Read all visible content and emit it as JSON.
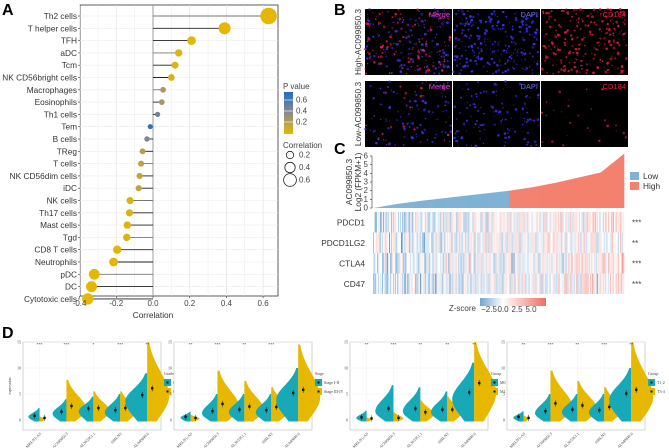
{
  "panel_labels": [
    "A",
    "B",
    "C",
    "D"
  ],
  "chart_data": [
    {
      "type": "lollipop",
      "panel": "A",
      "xlabel": "Correlation",
      "xlim": [
        -0.4,
        0.65
      ],
      "xticks": [
        "-0.4",
        "-0.2",
        "0.0",
        "0.2",
        "0.4",
        "0.6"
      ],
      "categories": [
        "Th2 cells",
        "T helper cells",
        "TFH",
        "aDC",
        "Tcm",
        "NK CD56bright cells",
        "Macrophages",
        "Eosinophils",
        "Th1 cells",
        "Tem",
        "B cells",
        "TReg",
        "T cells",
        "NK CD56dim cells",
        "iDC",
        "NK cells",
        "Th17 cells",
        "Mast cells",
        "Tgd",
        "CD8 T cells",
        "Neutrophils",
        "pDC",
        "DC",
        "Cytotoxic cells"
      ],
      "correlation": [
        0.63,
        0.39,
        0.21,
        0.14,
        0.12,
        0.1,
        0.055,
        0.048,
        0.025,
        -0.015,
        -0.033,
        -0.057,
        -0.065,
        -0.073,
        -0.078,
        -0.125,
        -0.128,
        -0.14,
        -0.143,
        -0.195,
        -0.215,
        -0.32,
        -0.335,
        -0.355
      ],
      "p_value": [
        0.01,
        0.01,
        0.02,
        0.05,
        0.05,
        0.08,
        0.35,
        0.38,
        0.65,
        0.92,
        0.55,
        0.28,
        0.25,
        0.22,
        0.22,
        0.06,
        0.06,
        0.05,
        0.05,
        0.02,
        0.02,
        0.01,
        0.01,
        0.01
      ],
      "legend_pvalue": {
        "title": "P value",
        "ticks": [
          "0.6",
          "0.4",
          "0.2"
        ],
        "colors": {
          "high": "#1f6fc2",
          "mid": "#8d8a8f",
          "low": "#e7b800"
        }
      },
      "legend_correlation": {
        "title": "Correlation",
        "ticks": [
          "0.2",
          "0.4",
          "0.6"
        ]
      }
    },
    {
      "type": "image-grid",
      "panel": "B",
      "rows": [
        "High-AC099850.3",
        "Low-AC099850.3"
      ],
      "channels": [
        {
          "label": "Merge",
          "color": "#e040e0"
        },
        {
          "label": "DAPI",
          "color": "#6a6aff"
        },
        {
          "label": "CD184",
          "color": "#e8203f"
        }
      ]
    },
    {
      "type": "bar+heatmap",
      "panel": "C",
      "ylabel_line1": "AC099850.3",
      "ylabel_line2": "Log2 (FPKM+1)",
      "ylim": [
        0,
        6
      ],
      "yticks": [
        "0",
        "1",
        "2",
        "3",
        "4",
        "5",
        "6"
      ],
      "expression_quantiles": [
        0,
        0.45,
        0.8,
        1.1,
        1.4,
        1.7,
        2.0,
        2.4,
        2.9,
        3.5,
        4.1,
        6.2
      ],
      "split_value": 2.0,
      "groups": [
        {
          "name": "Low",
          "color": "#7fb2d5"
        },
        {
          "name": "High",
          "color": "#f4806f"
        }
      ],
      "heatmap_rows": [
        {
          "gene": "PDCD1",
          "sig": "***",
          "trend": 0.5
        },
        {
          "gene": "PDCD1LG2",
          "sig": "**",
          "trend": 0.3
        },
        {
          "gene": "CTLA4",
          "sig": "***",
          "trend": 0.4
        },
        {
          "gene": "CD47",
          "sig": "***",
          "trend": 0.5
        }
      ],
      "zscore_legend": {
        "title": "Z-score",
        "ticks": [
          "−2.5",
          "0.0",
          "2.5",
          "5.0"
        ]
      }
    },
    {
      "type": "split-violin",
      "panel": "D",
      "ylabel": "expression",
      "yticks": [
        "0",
        "5",
        "10",
        "15"
      ],
      "ylim": [
        0,
        15
      ],
      "genes": [
        "MKLN1-AS",
        "AC099850.3",
        "AL365361.1",
        "SIRLNT",
        "AL049840.6"
      ],
      "group_colors": [
        "#17a9b7",
        "#e7b800"
      ],
      "panels": [
        {
          "legend_title": "Grade",
          "groups": [
            "G1-2",
            "G3-4"
          ],
          "stars": [
            "***",
            "***",
            "*",
            "***",
            "**"
          ],
          "means": [
            [
              0.8,
              0.4
            ],
            [
              1.6,
              2.7
            ],
            [
              2.2,
              2.3
            ],
            [
              1.9,
              2.3
            ],
            [
              4.8,
              6.1
            ]
          ],
          "max": [
            [
              2.3,
              0.7
            ],
            [
              4,
              7.7
            ],
            [
              4.5,
              5.5
            ],
            [
              5,
              5.5
            ],
            [
              9,
              15
            ]
          ]
        },
        {
          "legend_title": "Stage",
          "groups": [
            "Stage I-II",
            "Stage III-IV"
          ],
          "stars": [
            "**",
            "***",
            "**",
            "***",
            ""
          ],
          "means": [
            [
              0.6,
              0.4
            ],
            [
              1.7,
              3.1
            ],
            [
              2.0,
              2.6
            ],
            [
              1.9,
              2.5
            ],
            [
              5.2,
              5.8
            ]
          ],
          "max": [
            [
              1.6,
              1.0
            ],
            [
              5,
              9.5
            ],
            [
              5,
              7.5
            ],
            [
              5,
              6.3
            ],
            [
              10,
              14.5
            ]
          ]
        },
        {
          "legend_title": "Group",
          "groups": [
            "M0",
            "M1"
          ],
          "stars": [
            "**",
            "***",
            "**",
            "**",
            "**"
          ],
          "means": [
            [
              0.5,
              0.3
            ],
            [
              2.2,
              0.4
            ],
            [
              2.2,
              1.5
            ],
            [
              2.0,
              2.0
            ],
            [
              5.3,
              7.1
            ]
          ],
          "max": [
            [
              1.8,
              0.5
            ],
            [
              6.7,
              1.5
            ],
            [
              6.3,
              3.8
            ],
            [
              5.5,
              4.5
            ],
            [
              11,
              15
            ]
          ]
        },
        {
          "legend_title": "Group",
          "groups": [
            "T1-2",
            "T3-4"
          ],
          "stars": [
            "**",
            "***",
            "**",
            "***",
            "**"
          ],
          "means": [
            [
              0.6,
              0.4
            ],
            [
              1.7,
              3.2
            ],
            [
              2.0,
              2.8
            ],
            [
              1.9,
              2.5
            ],
            [
              5.1,
              5.8
            ]
          ],
          "max": [
            [
              1.7,
              0.9
            ],
            [
              5,
              9.5
            ],
            [
              5,
              7.5
            ],
            [
              5,
              6.3
            ],
            [
              10,
              15
            ]
          ]
        }
      ]
    }
  ]
}
